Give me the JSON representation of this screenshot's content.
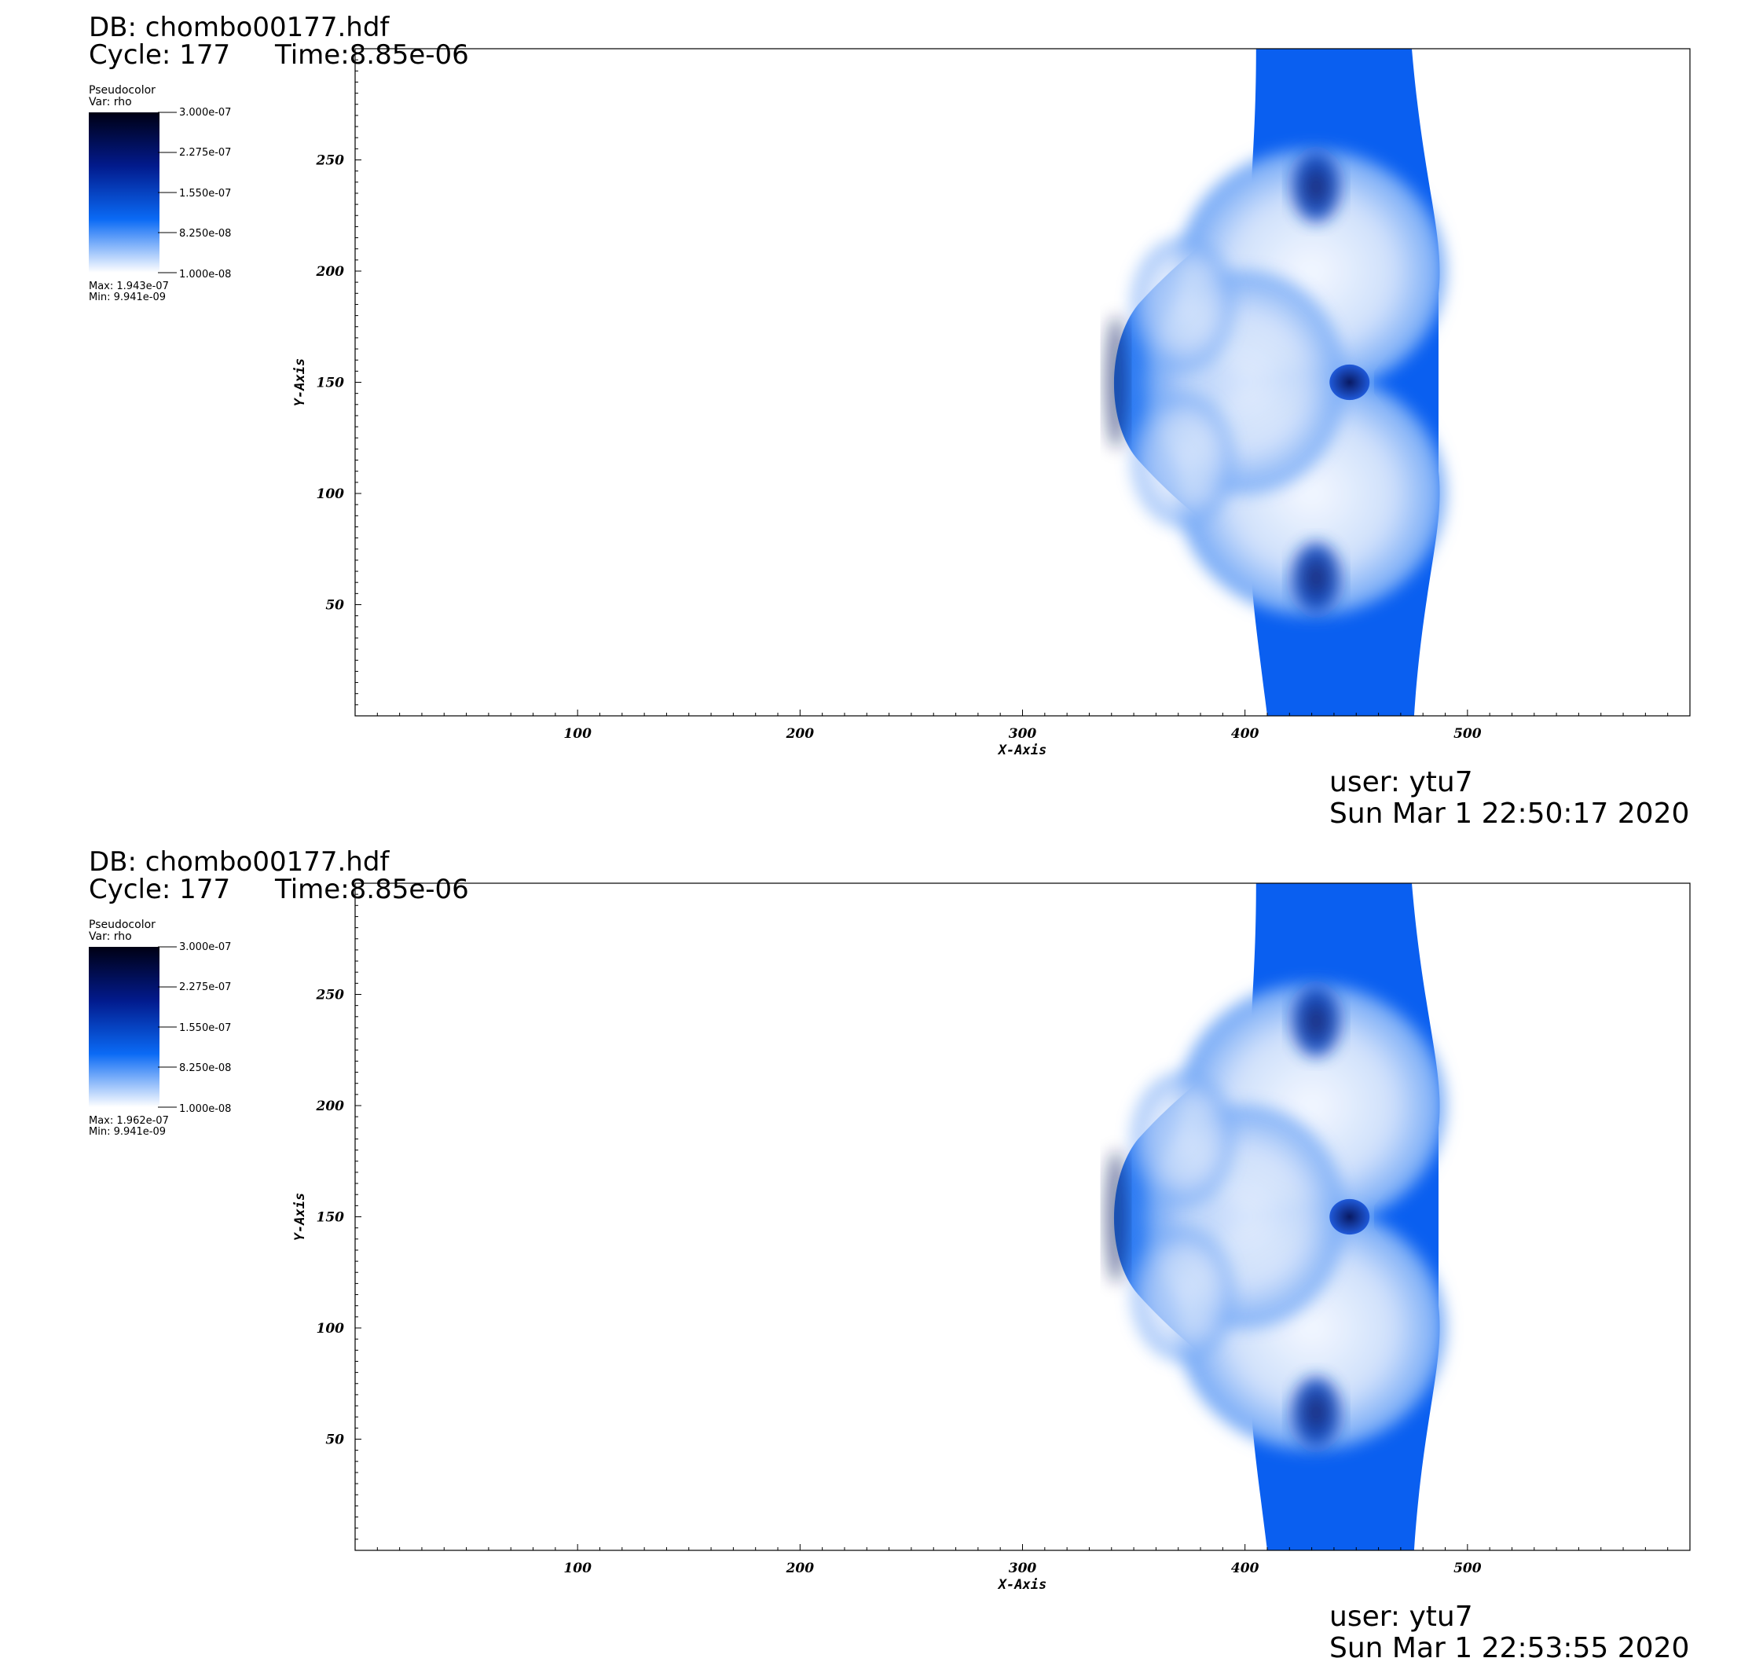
{
  "colors": {
    "background": "#ffffff",
    "colormap": [
      "#ffffff",
      "#0a6af5",
      "#021a8c",
      "#000014"
    ],
    "field_mid": "#0a5ff0",
    "field_light": "#e8f0fd",
    "field_dark": "#03125c",
    "axis": "#000000"
  },
  "panels": [
    {
      "db": "DB: chombo00177.hdf",
      "cycle": "Cycle: 177",
      "time": "Time:8.85e-06",
      "legend": {
        "plot_type": "Pseudocolor",
        "var": "Var: rho",
        "ticks": [
          "3.000e-07",
          "2.275e-07",
          "1.550e-07",
          "8.250e-08",
          "1.000e-08"
        ],
        "max": "Max:  1.943e-07",
        "min": "Min:  9.941e-09"
      },
      "user": "user: ytu7",
      "date": "Sun Mar  1 22:50:17 2020"
    },
    {
      "db": "DB: chombo00177.hdf",
      "cycle": "Cycle: 177",
      "time": "Time:8.85e-06",
      "legend": {
        "plot_type": "Pseudocolor",
        "var": "Var: rho",
        "ticks": [
          "3.000e-07",
          "2.275e-07",
          "1.550e-07",
          "8.250e-08",
          "1.000e-08"
        ],
        "max": "Max:  1.962e-07",
        "min": "Min:  9.941e-09"
      },
      "user": "user: ytu7",
      "date": "Sun Mar  1 22:53:55 2020"
    }
  ],
  "chart_data": [
    {
      "type": "heatmap",
      "variable": "rho",
      "xlabel": "X-Axis",
      "ylabel": "Y-Axis",
      "xlim": [
        0,
        600
      ],
      "ylim": [
        0,
        300
      ],
      "x_ticks": [
        100,
        200,
        300,
        400,
        500
      ],
      "y_ticks": [
        50,
        100,
        150,
        200,
        250
      ],
      "color_range": [
        1e-08,
        3e-07
      ],
      "data_max": 1.943e-07,
      "data_min": 9.941e-09
    },
    {
      "type": "heatmap",
      "variable": "rho",
      "xlabel": "X-Axis",
      "ylabel": "Y-Axis",
      "xlim": [
        0,
        600
      ],
      "ylim": [
        0,
        300
      ],
      "x_ticks": [
        100,
        200,
        300,
        400,
        500
      ],
      "y_ticks": [
        50,
        100,
        150,
        200,
        250
      ],
      "color_range": [
        1e-08,
        3e-07
      ],
      "data_max": 1.962e-07,
      "data_min": 9.941e-09
    }
  ]
}
